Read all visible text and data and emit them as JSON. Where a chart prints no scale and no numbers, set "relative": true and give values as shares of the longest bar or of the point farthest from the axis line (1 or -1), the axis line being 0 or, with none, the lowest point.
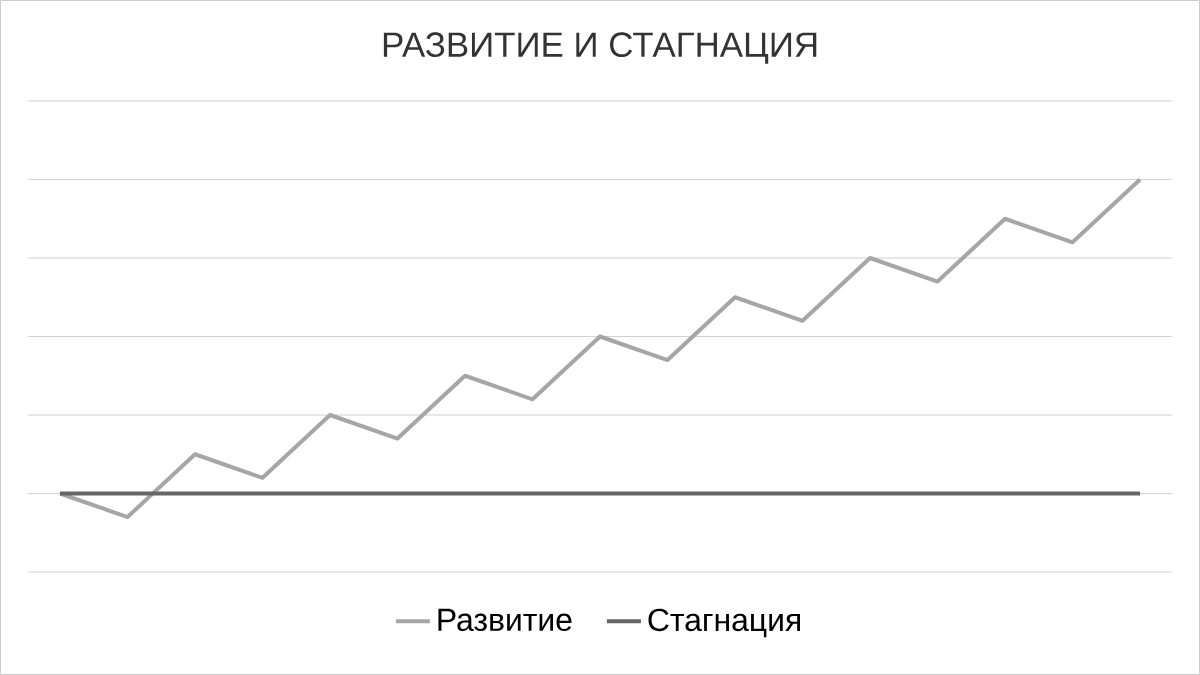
{
  "chart_data": {
    "type": "line",
    "title": "РАЗВИТИЕ И СТАГНАЦИЯ",
    "relative": true,
    "grid": "y",
    "legend": "bottom",
    "categories": [
      null,
      null,
      null,
      null,
      null,
      null,
      null,
      null,
      null,
      null,
      null,
      null,
      null,
      null,
      null,
      null,
      null
    ],
    "series": [
      {
        "name": "Развитие",
        "color": "#a6a6a6",
        "values": [
          0,
          -0.075,
          0.125,
          0.05,
          0.25,
          0.175,
          0.375,
          0.3,
          0.5,
          0.425,
          0.625,
          0.55,
          0.75,
          0.675,
          0.875,
          0.8,
          1
        ]
      },
      {
        "name": "Стагнация",
        "color": "#666666",
        "values": [
          0,
          0,
          0,
          0,
          0,
          0,
          0,
          0,
          0,
          0,
          0,
          0,
          0,
          0,
          0,
          0,
          0
        ]
      }
    ]
  }
}
